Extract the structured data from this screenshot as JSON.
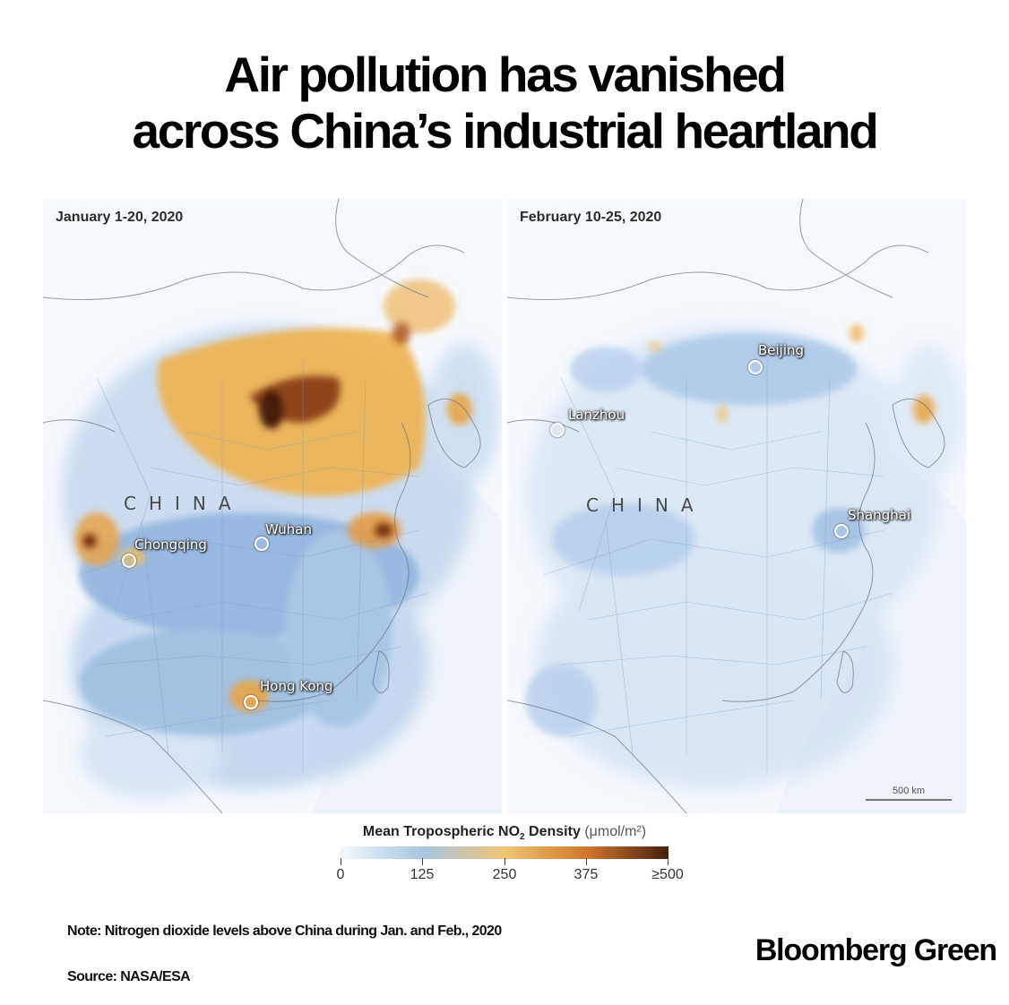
{
  "headline": {
    "line1": "Air pollution has vanished",
    "line2": "across China’s industrial heartland"
  },
  "maps": [
    {
      "date": "January 1-20, 2020",
      "country": "CHINA",
      "cities": [
        "Chongqing",
        "Wuhan",
        "Hong Kong"
      ]
    },
    {
      "date": "February 10-25, 2020",
      "country": "CHINA",
      "cities": [
        "Beijing",
        "Lanzhou",
        "Shanghai"
      ],
      "scale_label": "500 km"
    }
  ],
  "legend": {
    "title": "Mean Tropospheric NO",
    "subscript": "2",
    "title_rest": " Density",
    "unit": "(μmol/m²)",
    "ticks": [
      "0",
      "125",
      "250",
      "375",
      "≥500"
    ],
    "colors": [
      "#f4f8fc",
      "#a8c4e4",
      "#f0c474",
      "#d0782e",
      "#4a1e0e"
    ]
  },
  "note": "Note: Nitrogen dioxide levels above China during Jan. and Feb., 2020",
  "source": "Source: NASA/ESA",
  "brand": "Bloomberg Green"
}
